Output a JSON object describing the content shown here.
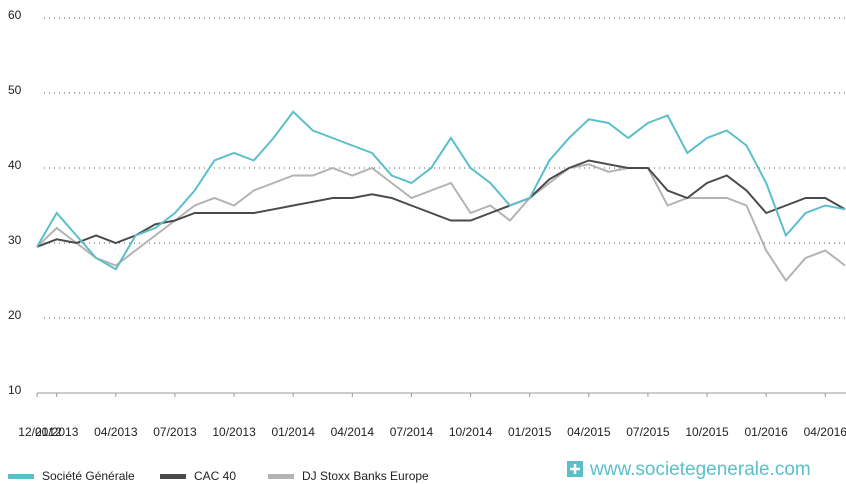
{
  "chart_data": {
    "type": "line",
    "x": [
      "12/2012",
      "01/2013",
      "02/2013",
      "03/2013",
      "04/2013",
      "05/2013",
      "06/2013",
      "07/2013",
      "08/2013",
      "09/2013",
      "10/2013",
      "11/2013",
      "12/2013",
      "01/2014",
      "02/2014",
      "03/2014",
      "04/2014",
      "05/2014",
      "06/2014",
      "07/2014",
      "08/2014",
      "09/2014",
      "10/2014",
      "11/2014",
      "12/2014",
      "01/2015",
      "02/2015",
      "03/2015",
      "04/2015",
      "05/2015",
      "06/2015",
      "07/2015",
      "08/2015",
      "09/2015",
      "10/2015",
      "11/2015",
      "12/2015",
      "01/2016",
      "02/2016",
      "03/2016",
      "04/2016",
      "05/2016"
    ],
    "xticks": [
      "12/2012",
      "01/2013",
      "04/2013",
      "07/2013",
      "10/2013",
      "01/2014",
      "04/2014",
      "07/2014",
      "10/2014",
      "01/2015",
      "04/2015",
      "07/2015",
      "10/2015",
      "01/2016",
      "04/2016"
    ],
    "series": [
      {
        "name": "Société Générale",
        "color": "#5bbfc9",
        "values": [
          29.5,
          34,
          31,
          28,
          26.5,
          31,
          32,
          34,
          37,
          41,
          42,
          41,
          44,
          47.5,
          45,
          44,
          43,
          42,
          39,
          38,
          40,
          44,
          40,
          38,
          35,
          36,
          41,
          44,
          46.5,
          46,
          44,
          46,
          47,
          42,
          44,
          45,
          43,
          38,
          31,
          34,
          35,
          34.5
        ]
      },
      {
        "name": "CAC 40",
        "color": "#4a4a4a",
        "values": [
          29.5,
          30.5,
          30,
          31,
          30,
          31,
          32.5,
          33,
          34,
          34,
          34,
          34,
          34.5,
          35,
          35.5,
          36,
          36,
          36.5,
          36,
          35,
          34,
          33,
          33,
          34,
          35,
          36,
          38.5,
          40,
          41,
          40.5,
          40,
          40,
          37,
          36,
          38,
          39,
          37,
          34,
          35,
          36,
          36,
          34.5
        ]
      },
      {
        "name": "DJ Stoxx Banks Europe",
        "color": "#b3b3b3",
        "values": [
          29.5,
          32,
          30,
          28,
          27,
          29,
          31,
          33,
          35,
          36,
          35,
          37,
          38,
          39,
          39,
          40,
          39,
          40,
          38,
          36,
          37,
          38,
          34,
          35,
          33,
          36,
          38,
          40,
          40.5,
          39.5,
          40,
          40,
          35,
          36,
          36,
          36,
          35,
          29,
          25,
          28,
          29,
          27
        ]
      }
    ],
    "ylim": [
      10,
      60
    ],
    "yticks": [
      10,
      20,
      30,
      40,
      50,
      60
    ],
    "grid": true,
    "annotation": "www.societegenerale.com"
  }
}
